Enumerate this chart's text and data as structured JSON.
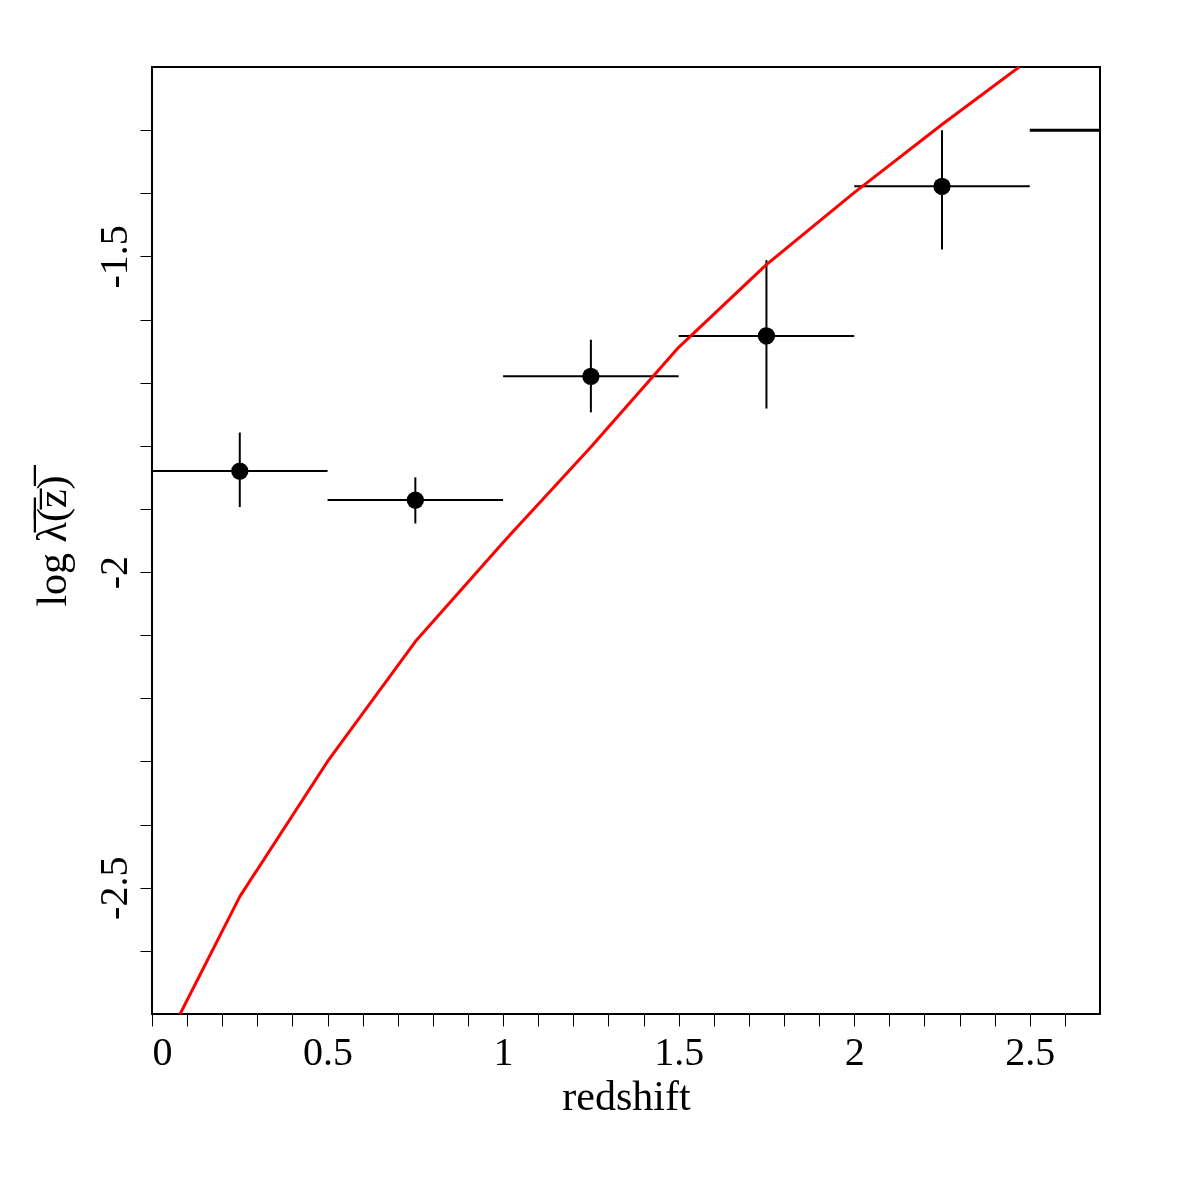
{
  "chart_data": {
    "type": "scatter",
    "xlabel": "redshift",
    "ylabel": "log λ̅(̅z̅)̅",
    "xlim": [
      0,
      2.7
    ],
    "ylim": [
      -2.7,
      -1.2
    ],
    "xticks": [
      0,
      {
        "value": 0.1,
        "label": null
      },
      {
        "value": 0.2,
        "label": null
      },
      {
        "value": 0.3,
        "label": null
      },
      {
        "value": 0.4,
        "label": null
      },
      0.5,
      {
        "value": 0.6,
        "label": null
      },
      {
        "value": 0.7,
        "label": null
      },
      {
        "value": 0.8,
        "label": null
      },
      {
        "value": 0.9,
        "label": null
      },
      1,
      {
        "value": 1.1,
        "label": null
      },
      {
        "value": 1.2,
        "label": null
      },
      {
        "value": 1.3,
        "label": null
      },
      {
        "value": 1.4,
        "label": null
      },
      1.5,
      {
        "value": 1.6,
        "label": null
      },
      {
        "value": 1.7,
        "label": null
      },
      {
        "value": 1.8,
        "label": null
      },
      {
        "value": 1.9,
        "label": null
      },
      2,
      {
        "value": 2.1,
        "label": null
      },
      {
        "value": 2.2,
        "label": null
      },
      {
        "value": 2.3,
        "label": null
      },
      {
        "value": 2.4,
        "label": null
      },
      2.5,
      {
        "value": 2.6,
        "label": null
      }
    ],
    "yticks": [
      {
        "value": -2.6,
        "label": null
      },
      -2.5,
      {
        "value": -2.4,
        "label": null
      },
      {
        "value": -2.3,
        "label": null
      },
      {
        "value": -2.2,
        "label": null
      },
      {
        "value": -2.1,
        "label": null
      },
      -2,
      {
        "value": -1.9,
        "label": null
      },
      {
        "value": -1.8,
        "label": null
      },
      {
        "value": -1.7,
        "label": null
      },
      {
        "value": -1.6,
        "label": null
      },
      -1.5,
      {
        "value": -1.4,
        "label": null
      },
      {
        "value": -1.3,
        "label": null
      }
    ],
    "grid": false,
    "series": [
      {
        "color": "#000000",
        "marker": "circle",
        "x": [
          0.25,
          0.75,
          1.25,
          1.75,
          2.25
        ],
        "values": [
          -1.84,
          -1.886,
          -1.69,
          -1.626,
          -1.389
        ],
        "errors": [
          [
            -1.897,
            -1.779
          ],
          [
            -1.923,
            -1.85
          ],
          [
            -1.747,
            -1.632
          ],
          [
            -1.741,
            -1.506
          ],
          [
            -1.489,
            -1.3
          ]
        ],
        "xerrors": [
          [
            0,
            0.5
          ],
          [
            0.5,
            1
          ],
          [
            1,
            1.5
          ],
          [
            1.5,
            2
          ],
          [
            2,
            2.5
          ]
        ]
      },
      {
        "type": "line",
        "color": "#000000",
        "x": [
          2.5,
          2.7
        ],
        "values": [
          -1.3,
          -1.3
        ]
      },
      {
        "type": "line",
        "color": "#ff0000",
        "x": [
          0.08,
          0.25,
          0.5,
          0.75,
          1,
          1.25,
          1.5,
          1.75,
          2,
          2.25,
          2.47
        ],
        "values": [
          -2.7,
          -2.514,
          -2.3,
          -2.11,
          -1.953,
          -1.802,
          -1.644,
          -1.513,
          -1.399,
          -1.291,
          -1.2
        ]
      }
    ]
  }
}
